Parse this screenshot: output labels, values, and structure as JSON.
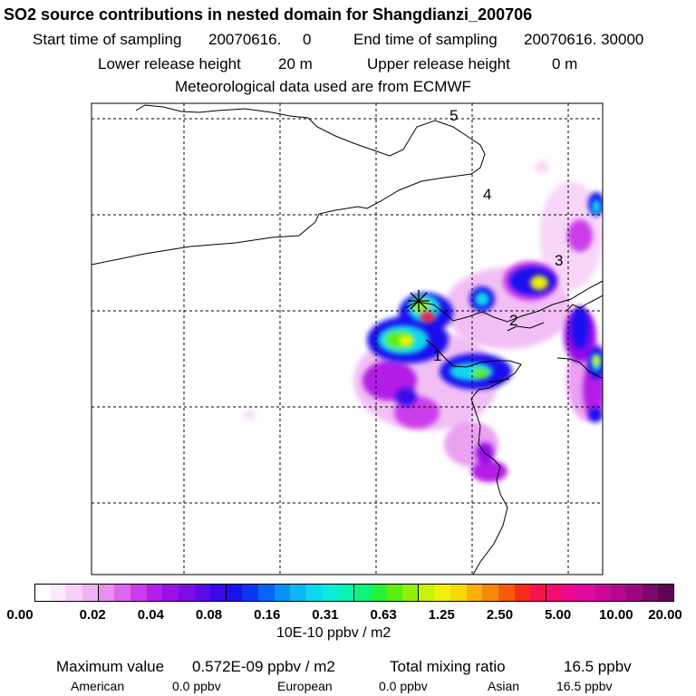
{
  "header": {
    "title": "SO2 source contributions in nested domain for Shangdianzi_200706",
    "start_label": "Start time of sampling",
    "start_value": "20070616.     0",
    "end_label": "End time of sampling",
    "end_value": "20070616. 30000",
    "lower_label": "Lower release height",
    "lower_value": "20 m",
    "upper_label": "Upper release height",
    "upper_value": "0 m",
    "met_line": "Meteorological data used are from ECMWF"
  },
  "map": {
    "track_labels": [
      "1",
      "2",
      "3",
      "4",
      "5"
    ],
    "land_outline_color": "#000000",
    "grid_style": "dashed"
  },
  "colorbar": {
    "units": "10E-10 ppbv / m2",
    "tick_labels": [
      "0.00",
      "0.02",
      "0.04",
      "0.08",
      "0.16",
      "0.31",
      "0.63",
      "1.25",
      "2.50",
      "5.00",
      "10.00",
      "20.00"
    ],
    "colors": [
      "#ffffff",
      "#fce8fc",
      "#f6d0f8",
      "#f0b4f4",
      "#e890f0",
      "#dc66ec",
      "#cc3cea",
      "#b41ee8",
      "#9810e6",
      "#7c0ce6",
      "#5a0ae8",
      "#3a08ea",
      "#1c10f0",
      "#0a36f4",
      "#0664f6",
      "#0892f8",
      "#0ab8f6",
      "#0ad8ee",
      "#08ecdc",
      "#06f4b4",
      "#0cf480",
      "#24f23c",
      "#58f010",
      "#94f008",
      "#c8f408",
      "#f0f008",
      "#f8d808",
      "#f8b008",
      "#f88808",
      "#f85a08",
      "#f82c1c",
      "#f81448",
      "#f40c70",
      "#ee0890",
      "#e008a0",
      "#cc0898",
      "#b40890",
      "#9a0880",
      "#7c086c",
      "#5e0654"
    ]
  },
  "footer": {
    "max_label": "Maximum value",
    "max_value": "0.572E-09 ppbv / m2",
    "total_label": "Total mixing ratio",
    "total_value": "16.5 ppbv",
    "american_label": "American",
    "american_value": "0.0 ppbv",
    "european_label": "European",
    "european_value": "0.0 ppbv",
    "asian_label": "Asian",
    "asian_value": "16.5 ppbv"
  }
}
